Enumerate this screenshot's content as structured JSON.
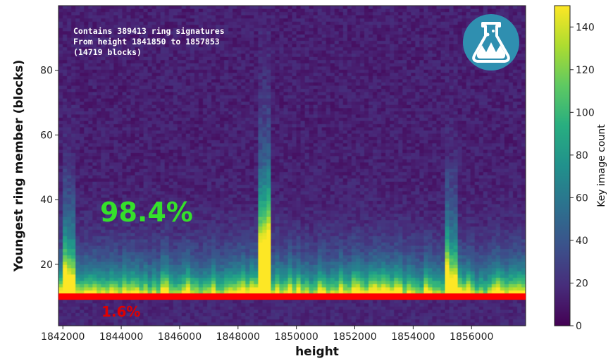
{
  "chart_data": {
    "type": "heatmap",
    "xlabel": "height",
    "ylabel": "Youngest ring member (blocks)",
    "xlim": [
      1841850,
      1857853
    ],
    "ylim": [
      1,
      100
    ],
    "x_ticks": [
      1842000,
      1844000,
      1846000,
      1848000,
      1850000,
      1852000,
      1854000,
      1856000
    ],
    "x_tick_labels": [
      "1842000",
      "1844000",
      "1846000",
      "1848000",
      "1850000",
      "1852000",
      "1854000",
      "1856000"
    ],
    "y_ticks": [
      20,
      40,
      60,
      80
    ],
    "y_tick_labels": [
      "20",
      "40",
      "60",
      "80"
    ],
    "colorbar": {
      "label": "Key image count",
      "colormap": "viridis",
      "range": [
        0,
        150
      ],
      "ticks": [
        0,
        20,
        40,
        60,
        80,
        100,
        120,
        140
      ],
      "tick_labels": [
        "0",
        "20",
        "40",
        "60",
        "80",
        "100",
        "120",
        "140"
      ]
    },
    "annotations": [
      "Contains 389413 ring signatures",
      "From height 1841850 to 1857853",
      "(14719 blocks)"
    ],
    "threshold_line": {
      "y": 10,
      "color": "#ff0000"
    },
    "percent_above": "98.4%",
    "percent_below": "1.6%",
    "percent_above_color": "#35e02b",
    "percent_below_color": "#e00000",
    "bins": {
      "x_count": 110,
      "y_count": 100
    },
    "spike_heights": [
      1848800,
      1855300,
      1842100
    ],
    "grid": false
  },
  "logo": {
    "name": "flask-logo-icon",
    "bg_color": "#2f8fb0"
  }
}
